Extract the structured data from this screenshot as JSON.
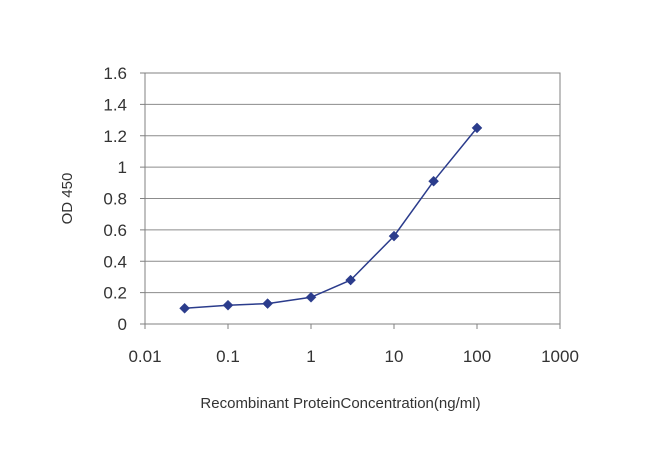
{
  "chart_data": {
    "type": "line",
    "title": "",
    "xlabel": "Recombinant ProteinConcentration(ng/ml)",
    "ylabel": "OD 450",
    "x_scale": "log",
    "xlim": [
      0.01,
      1000
    ],
    "ylim": [
      0,
      1.6
    ],
    "x_ticks": [
      "0.01",
      "0.1",
      "1",
      "10",
      "100",
      "1000"
    ],
    "y_ticks": [
      "0",
      "0.2",
      "0.4",
      "0.6",
      "0.8",
      "1",
      "1.2",
      "1.4",
      "1.6"
    ],
    "grid": "horizontal",
    "legend": "none",
    "series": [
      {
        "x": [
          0.03,
          0.1,
          0.3,
          1,
          3,
          10,
          30,
          100
        ],
        "y": [
          0.1,
          0.12,
          0.13,
          0.17,
          0.28,
          0.56,
          0.91,
          1.25
        ],
        "color": "#2B3C8C"
      }
    ]
  }
}
